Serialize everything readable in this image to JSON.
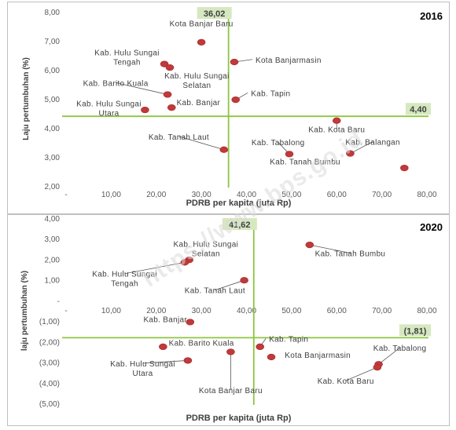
{
  "watermark": "https://www.bps.go.id",
  "chart_data": [
    {
      "type": "scatter",
      "year_label": "2016",
      "xlabel": "PDRB per kapita (juta Rp)",
      "ylabel": "Laju pertumbuhan (%)",
      "xlim": [
        0,
        80
      ],
      "ylim": [
        2,
        8
      ],
      "x_ticks": [
        "-",
        "10,00",
        "20,00",
        "30,00",
        "40,00",
        "50,00",
        "60,00",
        "70,00",
        "80,00"
      ],
      "y_ticks": [
        "2,00",
        "3,00",
        "4,00",
        "5,00",
        "6,00",
        "7,00",
        "8,00"
      ],
      "vline": {
        "x": 36.02,
        "label": "36,02"
      },
      "hline": {
        "y": 4.4,
        "label": "4,40"
      },
      "point_color": "#c0393b",
      "line_color": "#8dc63f",
      "label_bg": "#d6e8c0",
      "points": [
        {
          "name": "Kota Banjar Baru",
          "x": 30.0,
          "y": 6.95,
          "lx": 30.0,
          "ly": 7.5,
          "anchor": "middle"
        },
        {
          "name": "Kab. Hulu Sungai\nTengah",
          "x": 21.8,
          "y": 6.2,
          "lx": 13.5,
          "ly": 6.5,
          "anchor": "middle"
        },
        {
          "name": "Kota Banjarmasin",
          "x": 37.3,
          "y": 6.27,
          "lx": 42.0,
          "ly": 6.25,
          "anchor": "start",
          "leader": true
        },
        {
          "name": "Kab. Hulu Sungai\nSelatan",
          "x": 23.0,
          "y": 6.08,
          "lx": 29.0,
          "ly": 5.7,
          "anchor": "middle"
        },
        {
          "name": "Kab. Barito Kuala",
          "x": 22.5,
          "y": 5.15,
          "lx": 11.0,
          "ly": 5.45,
          "anchor": "middle",
          "leader": true
        },
        {
          "name": "Kab. Tapin",
          "x": 37.6,
          "y": 4.97,
          "lx": 41.0,
          "ly": 5.1,
          "anchor": "start",
          "leader": true
        },
        {
          "name": "Kab. Banjar",
          "x": 23.4,
          "y": 4.7,
          "lx": 24.5,
          "ly": 4.78,
          "anchor": "start"
        },
        {
          "name": "Kab. Hulu Sungai\nUtara",
          "x": 17.5,
          "y": 4.62,
          "lx": 9.5,
          "ly": 4.75,
          "anchor": "middle"
        },
        {
          "name": "Kab. Kota Baru",
          "x": 60.0,
          "y": 4.25,
          "lx": 60.0,
          "ly": 3.85,
          "anchor": "middle",
          "leader": true
        },
        {
          "name": "Kab. Tanah Laut",
          "x": 35.0,
          "y": 3.25,
          "lx": 25.0,
          "ly": 3.6,
          "anchor": "middle",
          "leader": true
        },
        {
          "name": "Kab. Tabalong",
          "x": 49.5,
          "y": 3.1,
          "lx": 47.0,
          "ly": 3.4,
          "anchor": "middle",
          "leader": true
        },
        {
          "name": "Kab. Balangan",
          "x": 63.0,
          "y": 3.12,
          "lx": 68.0,
          "ly": 3.42,
          "anchor": "middle",
          "leader": true
        },
        {
          "name": "Kab. Tanah Bumbu",
          "x": 75.0,
          "y": 2.62,
          "lx": 53.0,
          "ly": 2.75,
          "anchor": "middle",
          "leader_to": "Kab. Balangan"
        }
      ]
    },
    {
      "type": "scatter",
      "year_label": "2020",
      "xlabel": "PDRB per kapita (juta Rp)",
      "ylabel": "laju pertumbuhan (%)",
      "xlim": [
        0,
        80
      ],
      "ylim": [
        -5,
        4
      ],
      "x_ticks": [
        "-",
        "10,00",
        "20,00",
        "30,00",
        "40,00",
        "50,00",
        "60,00",
        "70,00",
        "80,00"
      ],
      "y_ticks": [
        "(5,00)",
        "(4,00)",
        "(3,00)",
        "(2,00)",
        "(1,00)",
        "-",
        "1,00",
        "2,00",
        "3,00",
        "4,00"
      ],
      "vline": {
        "x": 41.62,
        "label": "41,62"
      },
      "hline": {
        "y": -1.81,
        "label": "(1,81)"
      },
      "point_color": "#c0393b",
      "line_color": "#8dc63f",
      "label_bg": "#d6e8c0",
      "points": [
        {
          "name": "Kab. Tanah Bumbu",
          "x": 54.0,
          "y": 2.7,
          "lx": 63.0,
          "ly": 2.15,
          "anchor": "middle",
          "leader": true
        },
        {
          "name": "Kab. Hulu Sungai\nSelatan",
          "x": 27.3,
          "y": 1.97,
          "lx": 31.0,
          "ly": 2.6,
          "anchor": "middle"
        },
        {
          "name": "Kab. Hulu Sungai\nTengah",
          "x": 26.3,
          "y": 1.85,
          "lx": 13.0,
          "ly": 1.15,
          "anchor": "middle",
          "leader": true
        },
        {
          "name": "Kab. Tanah Laut",
          "x": 39.5,
          "y": 0.98,
          "lx": 33.0,
          "ly": 0.35,
          "anchor": "middle",
          "leader": true
        },
        {
          "name": "Kab. Banjar",
          "x": 27.5,
          "y": -1.05,
          "lx": 22.0,
          "ly": -1.05,
          "anchor": "middle"
        },
        {
          "name": "Kab. Tapin",
          "x": 43.0,
          "y": -2.25,
          "lx": 45.0,
          "ly": -2.0,
          "anchor": "start",
          "leader": true
        },
        {
          "name": "Kab. Barito Kuala",
          "x": 21.5,
          "y": -2.25,
          "lx": 30.0,
          "ly": -2.2,
          "anchor": "middle"
        },
        {
          "name": "Kota Banjarmasin",
          "x": 45.5,
          "y": -2.75,
          "lx": 48.5,
          "ly": -2.78,
          "anchor": "start"
        },
        {
          "name": "Kota Banjar Baru",
          "x": 36.5,
          "y": -2.5,
          "lx": 36.5,
          "ly": -4.5,
          "anchor": "middle",
          "leader": true
        },
        {
          "name": "Kab. Hulu Sungai\nUtara",
          "x": 27.0,
          "y": -2.92,
          "lx": 17.0,
          "ly": -3.2,
          "anchor": "middle",
          "leader": true
        },
        {
          "name": "Kab. Tabalong",
          "x": 69.3,
          "y": -3.1,
          "lx": 74.0,
          "ly": -2.45,
          "anchor": "middle",
          "leader": true
        },
        {
          "name": "Kab. Kota Baru",
          "x": 69.0,
          "y": -3.25,
          "lx": 62.0,
          "ly": -4.05,
          "anchor": "middle",
          "leader": true
        }
      ]
    }
  ]
}
